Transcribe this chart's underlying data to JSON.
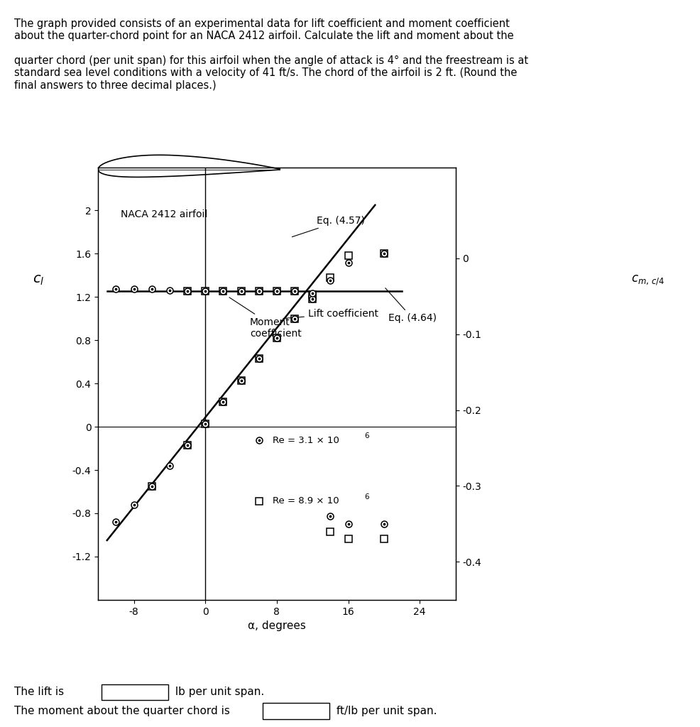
{
  "airfoil_label": "NACA 2412 airfoil",
  "xlabel": "α, degrees",
  "xlim": [
    -12,
    28
  ],
  "ylim_left": [
    -1.6,
    2.4
  ],
  "ylim_right": [
    -0.45,
    0.12
  ],
  "xticks": [
    -8,
    0,
    8,
    16,
    24
  ],
  "yticks_left": [
    -1.2,
    -0.8,
    -0.4,
    0,
    0.4,
    0.8,
    1.2,
    1.6,
    2.0
  ],
  "yticks_right": [
    -0.4,
    -0.3,
    -0.2,
    -0.1,
    0
  ],
  "eq457_label": "Eq. (4.57)",
  "eq464_label": "Eq. (4.64)",
  "lift_label": "Lift coefficient",
  "moment_label": "Moment\ncoefficient",
  "legend_re1": "Re = 3.1 × 10",
  "legend_re2": "Re = 8.9 × 10",
  "lift_circle_alpha": [
    -10,
    -8,
    -6,
    -4,
    -2,
    0,
    2,
    4,
    6,
    8,
    10,
    12,
    14,
    16,
    20
  ],
  "lift_circle_cl": [
    -0.88,
    -0.72,
    -0.55,
    -0.36,
    -0.17,
    0.03,
    0.23,
    0.43,
    0.63,
    0.82,
    1.0,
    1.18,
    1.35,
    1.52,
    1.6
  ],
  "lift_square_alpha": [
    -6,
    -2,
    0,
    2,
    4,
    6,
    8,
    10,
    12,
    14,
    16,
    20
  ],
  "lift_square_cl": [
    -0.55,
    -0.17,
    0.03,
    0.23,
    0.43,
    0.63,
    0.82,
    1.0,
    1.18,
    1.38,
    1.58,
    1.6
  ],
  "moment_circle_alpha": [
    -10,
    -8,
    -6,
    -4,
    -2,
    0,
    2,
    4,
    6,
    8,
    10,
    12,
    14,
    16,
    20
  ],
  "moment_circle_cm": [
    -0.04,
    -0.04,
    -0.04,
    -0.042,
    -0.043,
    -0.043,
    -0.043,
    -0.043,
    -0.043,
    -0.043,
    -0.043,
    -0.046,
    -0.34,
    -0.35,
    -0.35
  ],
  "moment_square_alpha": [
    -2,
    0,
    2,
    4,
    6,
    8,
    10,
    12,
    14,
    16,
    20
  ],
  "moment_square_cm": [
    -0.043,
    -0.043,
    -0.043,
    -0.043,
    -0.043,
    -0.043,
    -0.043,
    -0.048,
    -0.36,
    -0.37,
    -0.37
  ],
  "eq457_alpha": [
    -11,
    19
  ],
  "eq457_cl": [
    -1.05,
    2.05
  ],
  "eq464_alpha": [
    -11,
    22
  ],
  "eq464_cm": [
    -0.043,
    -0.043
  ],
  "background_color": "#ffffff",
  "answer_text1": "The lift is",
  "answer_text2": "lb per unit span.",
  "answer_text3": "The moment about the quarter chord is",
  "answer_text4": "ft/lb per unit span.",
  "desc_line1": "The graph provided consists of an experimental data for lift coefficient and moment coefficient",
  "desc_line2": "about the quarter-chord point for an NACA 2412 airfoil. Calculate the lift and moment about the",
  "desc_line3": "",
  "desc_line4": "quarter chord (per unit span) for this airfoil when the angle of attack is 4° and the freestream is at",
  "desc_line5": "standard sea level conditions with a velocity of 41 ft/s. The chord of the airfoil is 2 ft. (Round the",
  "desc_line6": "final answers to three decimal places.)"
}
